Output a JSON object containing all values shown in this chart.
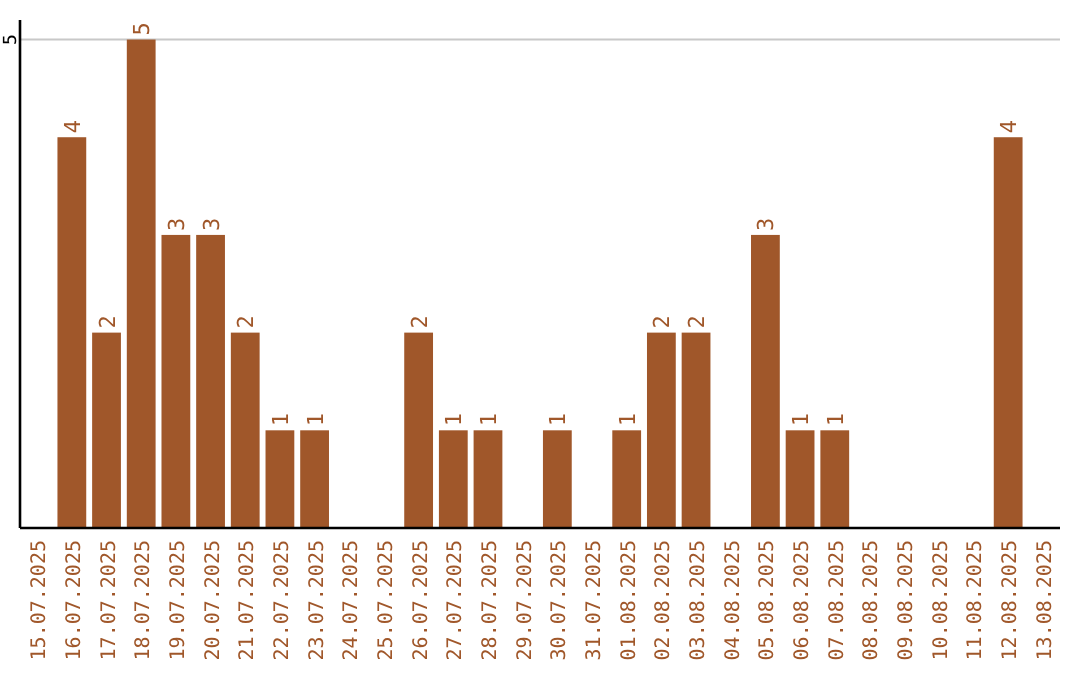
{
  "chart_data": {
    "type": "bar",
    "categories": [
      "15.07.2025",
      "16.07.2025",
      "17.07.2025",
      "18.07.2025",
      "19.07.2025",
      "20.07.2025",
      "21.07.2025",
      "22.07.2025",
      "23.07.2025",
      "24.07.2025",
      "25.07.2025",
      "26.07.2025",
      "27.07.2025",
      "28.07.2025",
      "29.07.2025",
      "30.07.2025",
      "31.07.2025",
      "01.08.2025",
      "02.08.2025",
      "03.08.2025",
      "04.08.2025",
      "05.08.2025",
      "06.08.2025",
      "07.08.2025",
      "08.08.2025",
      "09.08.2025",
      "10.08.2025",
      "11.08.2025",
      "12.08.2025",
      "13.08.2025"
    ],
    "values": [
      null,
      4,
      2,
      5,
      3,
      3,
      2,
      1,
      1,
      null,
      null,
      2,
      1,
      1,
      null,
      1,
      null,
      1,
      2,
      2,
      null,
      3,
      1,
      1,
      null,
      null,
      null,
      null,
      4,
      null
    ],
    "color": "#a0572a",
    "ylim": [
      0,
      5.2
    ],
    "yticks": [
      5
    ],
    "grid": "y",
    "data_labels": true
  }
}
